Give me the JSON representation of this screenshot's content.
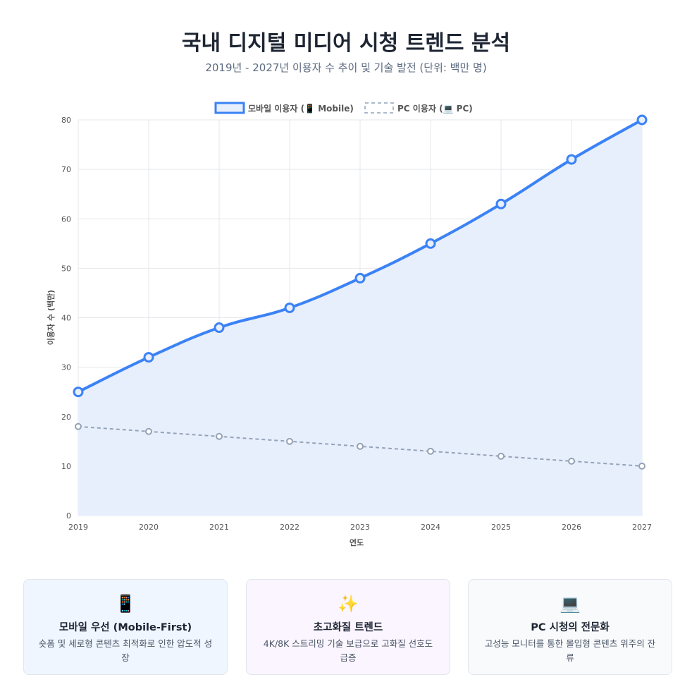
{
  "header": {
    "title": "국내 디지털 미디어 시청 트렌드 분석",
    "subtitle": "2019년 - 2027년 이용자 수 추이 및 기술 발전 (단위: 백만 명)"
  },
  "chart_data": {
    "type": "line",
    "x": [
      "2019",
      "2020",
      "2021",
      "2022",
      "2023",
      "2024",
      "2025",
      "2026",
      "2027"
    ],
    "series": [
      {
        "name": "모바일 이용자 (📱 Mobile)",
        "values": [
          25,
          32,
          38,
          42,
          48,
          55,
          63,
          72,
          80
        ],
        "color": "#3b82f6",
        "fill": "#e8effc",
        "style": "solid"
      },
      {
        "name": "PC 이용자 (💻 PC)",
        "values": [
          18,
          17,
          16,
          15,
          14,
          13,
          12,
          11,
          10
        ],
        "color": "#94a3b8",
        "style": "dashed"
      }
    ],
    "xlabel": "연도",
    "ylabel": "이용자 수 (백만)",
    "ylim": [
      0,
      80
    ],
    "yticks": [
      "0",
      "10",
      "20",
      "30",
      "40",
      "50",
      "60",
      "70",
      "80"
    ],
    "grid": true,
    "legend": "top-center"
  },
  "cards": [
    {
      "icon": "📱",
      "title": "모바일 우선 (Mobile-First)",
      "desc": "숏폼 및 세로형 콘텐츠 최적화로 인한 압도적 성장",
      "bg": "#eff6ff"
    },
    {
      "icon": "✨",
      "title": "초고화질 트렌드",
      "desc": "4K/8K 스트리밍 기술 보급으로 고화질 선호도 급증",
      "bg": "#faf5ff"
    },
    {
      "icon": "💻",
      "title": "PC 시청의 전문화",
      "desc": "고성능 모니터를 통한 몰입형 콘텐츠 위주의 잔류",
      "bg": "#f8fafc"
    }
  ]
}
